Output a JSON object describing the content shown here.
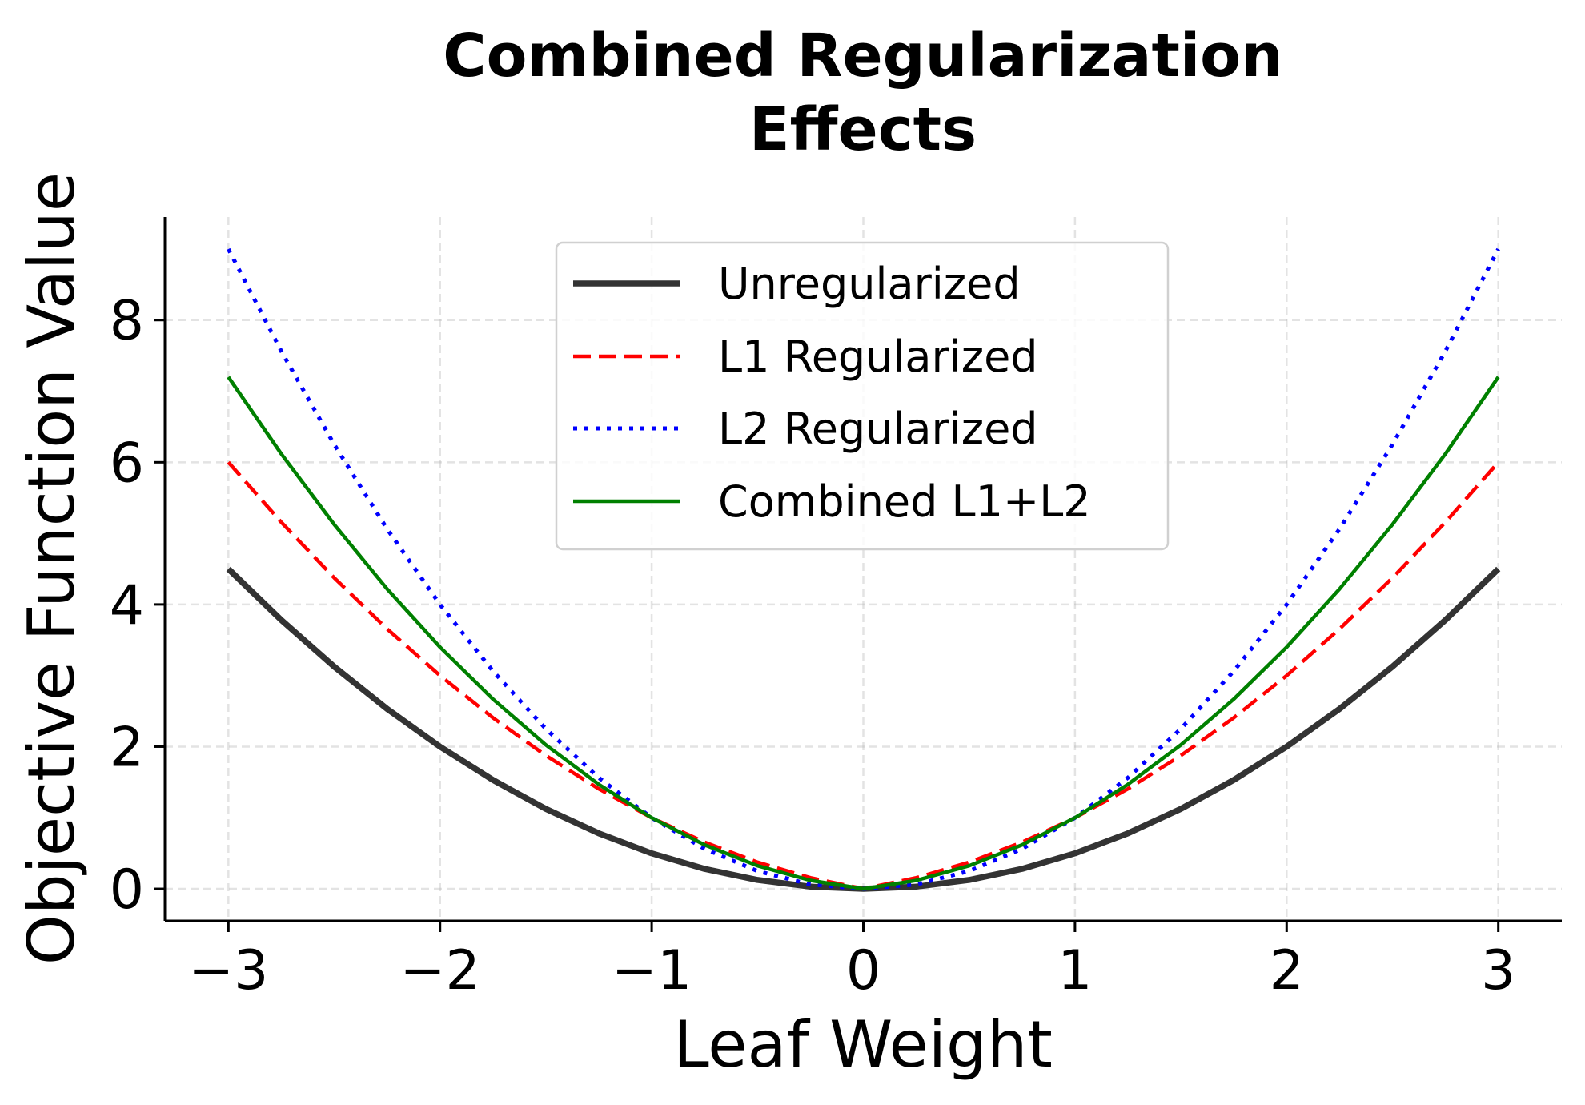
{
  "chart_data": {
    "type": "line",
    "title": "Combined Regularization\nEffects",
    "title_lines": [
      "Combined Regularization",
      "Effects"
    ],
    "xlabel": "Leaf Weight",
    "ylabel": "Objective Function Value",
    "xlim": [
      -3.3,
      3.3
    ],
    "ylim": [
      -0.45,
      9.45
    ],
    "xticks": [
      -3,
      -2,
      -1,
      0,
      1,
      2,
      3
    ],
    "xtick_labels": [
      "−3",
      "−2",
      "−1",
      "0",
      "1",
      "2",
      "3"
    ],
    "yticks": [
      0,
      2,
      4,
      6,
      8
    ],
    "ytick_labels": [
      "0",
      "2",
      "4",
      "6",
      "8"
    ],
    "grid": true,
    "legend_placement": "upper-center",
    "x": [
      -3,
      -2.75,
      -2.5,
      -2.25,
      -2,
      -1.75,
      -1.5,
      -1.25,
      -1,
      -0.75,
      -0.5,
      -0.25,
      0,
      0.25,
      0.5,
      0.75,
      1,
      1.25,
      1.5,
      1.75,
      2,
      2.25,
      2.5,
      2.75,
      3
    ],
    "series": [
      {
        "name": "Unregularized",
        "color": "#333333",
        "style": "solid",
        "values": [
          4.5,
          3.78125,
          3.125,
          2.53125,
          2,
          1.53125,
          1.125,
          0.78125,
          0.5,
          0.28125,
          0.125,
          0.03125,
          0,
          0.03125,
          0.125,
          0.28125,
          0.5,
          0.78125,
          1.125,
          1.53125,
          2,
          2.53125,
          3.125,
          3.78125,
          4.5
        ]
      },
      {
        "name": "L1 Regularized",
        "color": "#ff0000",
        "style": "dashed",
        "values": [
          6,
          5.15625,
          4.375,
          3.65625,
          3,
          2.40625,
          1.875,
          1.40625,
          1,
          0.65625,
          0.375,
          0.15625,
          0,
          0.15625,
          0.375,
          0.65625,
          1,
          1.40625,
          1.875,
          2.40625,
          3,
          3.65625,
          4.375,
          5.15625,
          6
        ]
      },
      {
        "name": "L2 Regularized",
        "color": "#0000ff",
        "style": "dotted",
        "values": [
          9,
          7.5625,
          6.25,
          5.0625,
          4,
          3.0625,
          2.25,
          1.5625,
          1,
          0.5625,
          0.25,
          0.0625,
          0,
          0.0625,
          0.25,
          0.5625,
          1,
          1.5625,
          2.25,
          3.0625,
          4,
          5.0625,
          6.25,
          7.5625,
          9
        ]
      },
      {
        "name": "Combined L1+L2",
        "color": "#008000",
        "style": "solid",
        "values": [
          7.2,
          6.11875,
          5.125,
          4.21875,
          3.4,
          2.66875,
          2.025,
          1.46875,
          1,
          0.61875,
          0.325,
          0.11875,
          0,
          0.11875,
          0.325,
          0.61875,
          1,
          1.46875,
          2.025,
          2.66875,
          3.4,
          4.21875,
          5.125,
          6.11875,
          7.2
        ]
      }
    ]
  }
}
